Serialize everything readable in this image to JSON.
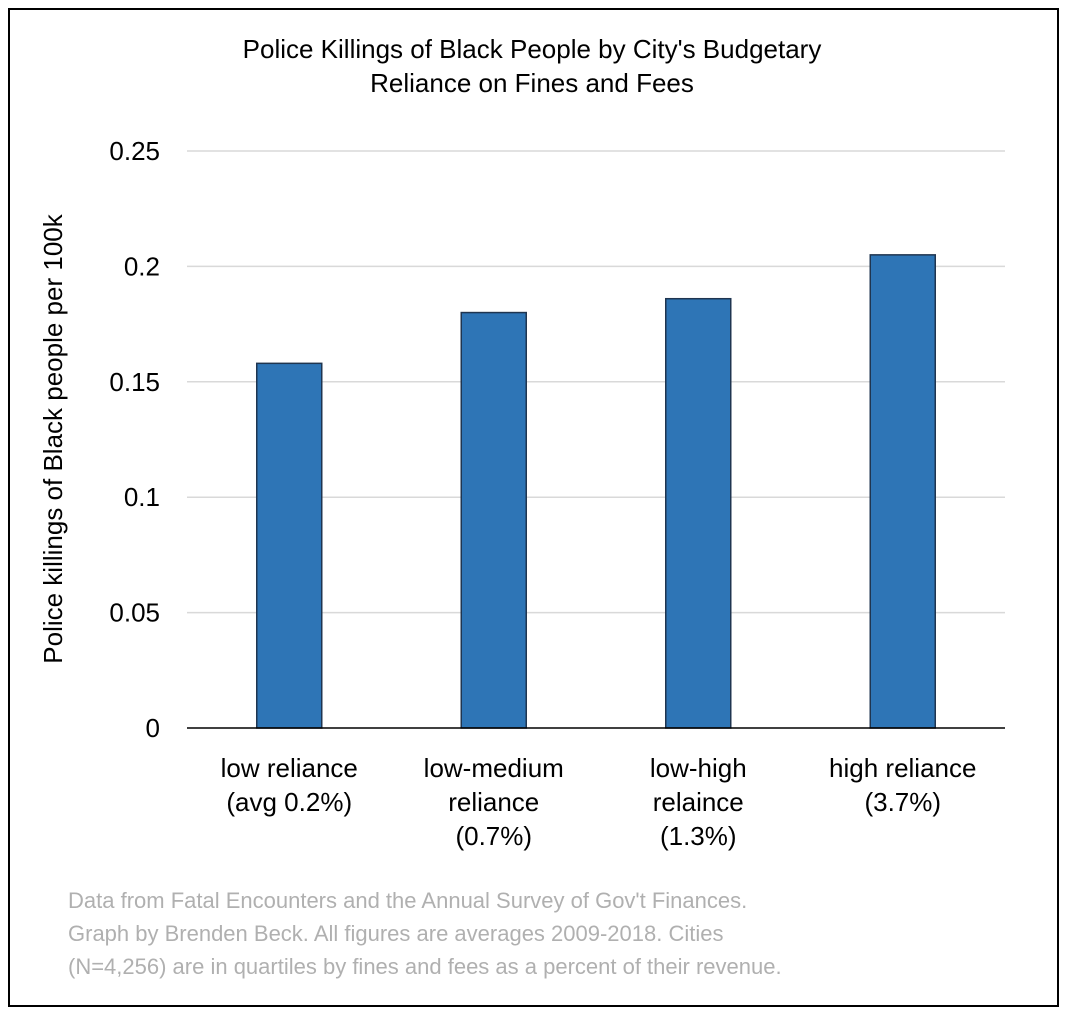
{
  "chart_data": {
    "type": "bar",
    "title_lines": [
      "Police Killings of Black People by City's Budgetary",
      "Reliance on Fines and Fees"
    ],
    "ylabel": "Police killings of Black people per 100k",
    "xlabel": "",
    "ylim": [
      0,
      0.25
    ],
    "yticks": [
      "0",
      "0.05",
      "0.1",
      "0.15",
      "0.2",
      "0.25"
    ],
    "ytick_values": [
      0,
      0.05,
      0.1,
      0.15,
      0.2,
      0.25
    ],
    "grid": true,
    "categories": [
      {
        "lines": [
          "low reliance",
          "(avg 0.2%)"
        ]
      },
      {
        "lines": [
          "low-medium",
          "reliance",
          "(0.7%)"
        ]
      },
      {
        "lines": [
          "low-high",
          "relaince",
          "(1.3%)"
        ]
      },
      {
        "lines": [
          "high reliance",
          "(3.7%)"
        ]
      }
    ],
    "values": [
      0.158,
      0.18,
      0.186,
      0.205
    ],
    "bar_color": "#2e75b6",
    "bar_edge_color": "#1f3550",
    "note_lines": [
      "Data from Fatal Encounters and the Annual Survey of Gov't Finances.",
      "Graph by Brenden Beck. All figures are averages 2009-2018. Cities",
      "(N=4,256) are in quartiles by fines and fees as a percent of their revenue."
    ]
  }
}
